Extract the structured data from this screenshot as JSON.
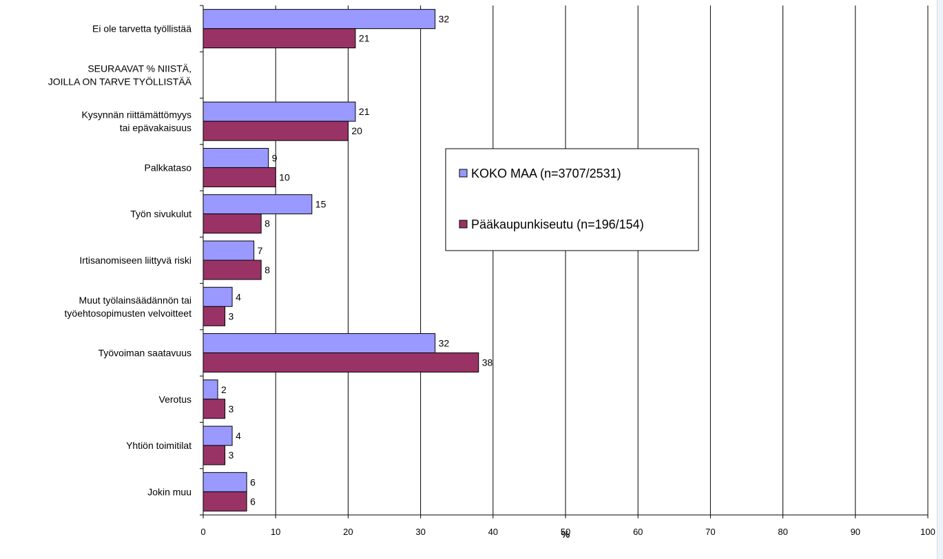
{
  "chart_data": {
    "type": "bar",
    "orientation": "horizontal",
    "categories": [
      [
        "Ei ole tarvetta työllistää"
      ],
      [
        "SEURAAVAT % NIISTÄ,",
        "JOILLA ON TARVE TYÖLLISTÄÄ"
      ],
      [
        "Kysynnän riittämättömyys",
        "tai epävakaisuus"
      ],
      [
        "Palkkataso"
      ],
      [
        "Työn sivukulut"
      ],
      [
        "Irtisanomiseen liittyvä riski"
      ],
      [
        "Muut työlainsäädännön tai",
        "työehtosopimusten velvoitteet"
      ],
      [
        "Työvoiman saatavuus"
      ],
      [
        "Verotus"
      ],
      [
        "Yhtiön toimitilat"
      ],
      [
        "Jokin muu"
      ]
    ],
    "series": [
      {
        "name": "KOKO MAA (n=3707/2531)",
        "color": "#9999ff",
        "values": [
          32,
          null,
          21,
          9,
          15,
          7,
          4,
          32,
          2,
          4,
          6
        ]
      },
      {
        "name": "Pääkaupunkiseutu (n=196/154)",
        "color": "#993366",
        "values": [
          21,
          null,
          20,
          10,
          8,
          8,
          3,
          38,
          3,
          3,
          6
        ]
      }
    ],
    "xlabel": "%",
    "xlim": [
      0,
      100
    ],
    "xticks": [
      0,
      10,
      20,
      30,
      40,
      50,
      60,
      70,
      80,
      90,
      100
    ],
    "grid": "vertical",
    "legend": "center-right"
  }
}
